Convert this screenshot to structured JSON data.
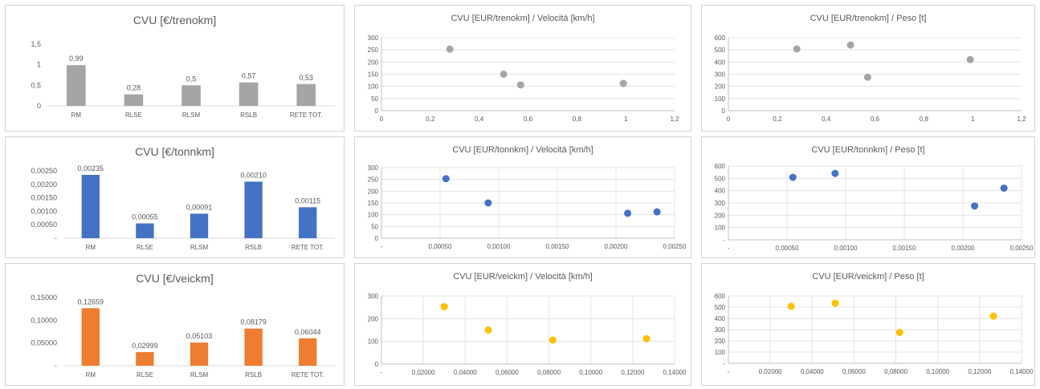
{
  "chart_data": [
    {
      "id": "bar1",
      "type": "bar",
      "title": "CVU [€/trenokm]",
      "color": "#a5a5a5",
      "categories": [
        "RM",
        "RLSE",
        "RLSM",
        "RSLB",
        "RETE TOT."
      ],
      "values": [
        0.99,
        0.28,
        0.5,
        0.57,
        0.53
      ],
      "value_labels": [
        "0,99",
        "0,28",
        "0,5",
        "0,57",
        "0,53"
      ],
      "ylim": [
        0,
        1.5
      ],
      "y_ticks": [
        {
          "v": 0,
          "label": "0"
        },
        {
          "v": 0.5,
          "label": "0,5"
        },
        {
          "v": 1,
          "label": "1"
        },
        {
          "v": 1.5,
          "label": "1,5"
        }
      ],
      "grid": false
    },
    {
      "id": "bar2",
      "type": "bar",
      "title": "CVU [€/tonnkm]",
      "color": "#4472c4",
      "categories": [
        "RM",
        "RLSE",
        "RLSM",
        "RSLB",
        "RETE TOT."
      ],
      "values": [
        0.00235,
        0.00055,
        0.00091,
        0.0021,
        0.00115
      ],
      "value_labels": [
        "0,00235",
        "0,00055",
        "0,00091",
        "0,00210",
        "0,00115"
      ],
      "ylim": [
        0,
        0.0025
      ],
      "y_ticks": [
        {
          "v": 0,
          "label": "-"
        },
        {
          "v": 0.0005,
          "label": "0,00050"
        },
        {
          "v": 0.001,
          "label": "0,00100"
        },
        {
          "v": 0.0015,
          "label": "0,00150"
        },
        {
          "v": 0.002,
          "label": "0,00200"
        },
        {
          "v": 0.0025,
          "label": "0,00250"
        }
      ],
      "grid": false
    },
    {
      "id": "bar3",
      "type": "bar",
      "title": "CVU [€/veickm]",
      "color": "#ed7d31",
      "categories": [
        "RM",
        "RLSE",
        "RLSM",
        "RSLB",
        "RETE TOT."
      ],
      "values": [
        0.12659,
        0.02999,
        0.05103,
        0.08179,
        0.06044
      ],
      "value_labels": [
        "0,12659",
        "0,02999",
        "0,05103",
        "0,08179",
        "0,06044"
      ],
      "ylim": [
        0,
        0.15
      ],
      "y_ticks": [
        {
          "v": 0,
          "label": "-"
        },
        {
          "v": 0.05,
          "label": "0,05000"
        },
        {
          "v": 0.1,
          "label": "0,10000"
        },
        {
          "v": 0.15,
          "label": "0,15000"
        }
      ],
      "grid": false
    },
    {
      "id": "sc1",
      "type": "scatter",
      "title": "CVU [EUR/trenokm] / Velocità [km/h]",
      "color": "#a5a5a5",
      "x": [
        0.28,
        0.5,
        0.57,
        0.99
      ],
      "y": [
        253,
        150,
        106,
        112
      ],
      "xlim": [
        0,
        1.2
      ],
      "ylim": [
        0,
        300
      ],
      "x_ticks": [
        {
          "v": 0,
          "label": "0"
        },
        {
          "v": 0.2,
          "label": "0,2"
        },
        {
          "v": 0.4,
          "label": "0,4"
        },
        {
          "v": 0.6,
          "label": "0,6"
        },
        {
          "v": 0.8,
          "label": "0,8"
        },
        {
          "v": 1,
          "label": "1"
        },
        {
          "v": 1.2,
          "label": "1,2"
        }
      ],
      "y_ticks": [
        {
          "v": 0,
          "label": "0"
        },
        {
          "v": 50,
          "label": "50"
        },
        {
          "v": 100,
          "label": "100"
        },
        {
          "v": 150,
          "label": "150"
        },
        {
          "v": 200,
          "label": "200"
        },
        {
          "v": 250,
          "label": "250"
        },
        {
          "v": 300,
          "label": "300"
        }
      ],
      "grid": "horizontal"
    },
    {
      "id": "sc2",
      "type": "scatter",
      "title": "CVU [EUR/trenokm] / Peso [t]",
      "color": "#a5a5a5",
      "x": [
        0.28,
        0.5,
        0.57,
        0.99
      ],
      "y": [
        508,
        540,
        275,
        420
      ],
      "xlim": [
        0,
        1.2
      ],
      "ylim": [
        0,
        600
      ],
      "x_ticks": [
        {
          "v": 0,
          "label": "0"
        },
        {
          "v": 0.2,
          "label": "0,2"
        },
        {
          "v": 0.4,
          "label": "0,4"
        },
        {
          "v": 0.6,
          "label": "0,6"
        },
        {
          "v": 0.8,
          "label": "0,8"
        },
        {
          "v": 1,
          "label": "1"
        },
        {
          "v": 1.2,
          "label": "1,2"
        }
      ],
      "y_ticks": [
        {
          "v": 0,
          "label": "0"
        },
        {
          "v": 100,
          "label": "100"
        },
        {
          "v": 200,
          "label": "200"
        },
        {
          "v": 300,
          "label": "300"
        },
        {
          "v": 400,
          "label": "400"
        },
        {
          "v": 500,
          "label": "500"
        },
        {
          "v": 600,
          "label": "600"
        }
      ],
      "grid": "horizontal"
    },
    {
      "id": "sc3",
      "type": "scatter",
      "title": "CVU [EUR/tonnkm] / Velocità [km/h]",
      "color": "#4472c4",
      "x": [
        0.00055,
        0.00091,
        0.0021,
        0.00235
      ],
      "y": [
        253,
        150,
        106,
        112
      ],
      "xlim": [
        0,
        0.0025
      ],
      "ylim": [
        0,
        300
      ],
      "x_ticks": [
        {
          "v": 0,
          "label": "-"
        },
        {
          "v": 0.0005,
          "label": "0,00050"
        },
        {
          "v": 0.001,
          "label": "0,00100"
        },
        {
          "v": 0.0015,
          "label": "0,00150"
        },
        {
          "v": 0.002,
          "label": "0,00200"
        },
        {
          "v": 0.0025,
          "label": "0,00250"
        }
      ],
      "y_ticks": [
        {
          "v": 0,
          "label": "0"
        },
        {
          "v": 50,
          "label": "50"
        },
        {
          "v": 100,
          "label": "100"
        },
        {
          "v": 150,
          "label": "150"
        },
        {
          "v": 200,
          "label": "200"
        },
        {
          "v": 250,
          "label": "250"
        },
        {
          "v": 300,
          "label": "300"
        }
      ],
      "grid": "both"
    },
    {
      "id": "sc4",
      "type": "scatter",
      "title": "CVU [EUR/tonnkm] / Peso [t]",
      "color": "#4472c4",
      "x": [
        0.00055,
        0.00091,
        0.0021,
        0.00235
      ],
      "y": [
        508,
        540,
        275,
        420
      ],
      "xlim": [
        0,
        0.0025
      ],
      "ylim": [
        0,
        600
      ],
      "x_ticks": [
        {
          "v": 0,
          "label": "-"
        },
        {
          "v": 0.0005,
          "label": "0,00050"
        },
        {
          "v": 0.001,
          "label": "0,00100"
        },
        {
          "v": 0.0015,
          "label": "0,00150"
        },
        {
          "v": 0.002,
          "label": "0,00200"
        },
        {
          "v": 0.0025,
          "label": "0,00250"
        }
      ],
      "y_ticks": [
        {
          "v": 0,
          "label": "-"
        },
        {
          "v": 100,
          "label": "100"
        },
        {
          "v": 200,
          "label": "200"
        },
        {
          "v": 300,
          "label": "300"
        },
        {
          "v": 400,
          "label": "400"
        },
        {
          "v": 500,
          "label": "500"
        },
        {
          "v": 600,
          "label": "600"
        }
      ],
      "grid": "both"
    },
    {
      "id": "sc5",
      "type": "scatter",
      "title": "CVU [EUR/veickm] / Velocità [km/h]",
      "color": "#ffc000",
      "x": [
        0.02999,
        0.05103,
        0.08179,
        0.12659
      ],
      "y": [
        253,
        150,
        106,
        112
      ],
      "xlim": [
        0,
        0.14
      ],
      "ylim": [
        0,
        300
      ],
      "x_ticks": [
        {
          "v": 0,
          "label": "-"
        },
        {
          "v": 0.02,
          "label": "0,02000"
        },
        {
          "v": 0.04,
          "label": "0,04000"
        },
        {
          "v": 0.06,
          "label": "0,06000"
        },
        {
          "v": 0.08,
          "label": "0,08000"
        },
        {
          "v": 0.1,
          "label": "0,10000"
        },
        {
          "v": 0.12,
          "label": "0,12000"
        },
        {
          "v": 0.14,
          "label": "0,14000"
        }
      ],
      "y_ticks": [
        {
          "v": 0,
          "label": "0"
        },
        {
          "v": 100,
          "label": "100"
        },
        {
          "v": 200,
          "label": "200"
        },
        {
          "v": 300,
          "label": "300"
        }
      ],
      "grid": "both"
    },
    {
      "id": "sc6",
      "type": "scatter",
      "title": "CVU [EUR/veickm] / Peso [t]",
      "color": "#ffc000",
      "x": [
        0.02999,
        0.05103,
        0.08179,
        0.12659
      ],
      "y": [
        508,
        535,
        275,
        420
      ],
      "xlim": [
        0,
        0.14
      ],
      "ylim": [
        0,
        600
      ],
      "x_ticks": [
        {
          "v": 0,
          "label": "-"
        },
        {
          "v": 0.02,
          "label": "0,02000"
        },
        {
          "v": 0.04,
          "label": "0,04000"
        },
        {
          "v": 0.06,
          "label": "0,06000"
        },
        {
          "v": 0.08,
          "label": "0,08000"
        },
        {
          "v": 0.1,
          "label": "0,10000"
        },
        {
          "v": 0.12,
          "label": "0,12000"
        },
        {
          "v": 0.14,
          "label": "0,14000"
        }
      ],
      "y_ticks": [
        {
          "v": 0,
          "label": "-"
        },
        {
          "v": 100,
          "label": "100"
        },
        {
          "v": 200,
          "label": "200"
        },
        {
          "v": 300,
          "label": "300"
        },
        {
          "v": 400,
          "label": "400"
        },
        {
          "v": 500,
          "label": "500"
        },
        {
          "v": 600,
          "label": "600"
        }
      ],
      "grid": "both"
    }
  ]
}
